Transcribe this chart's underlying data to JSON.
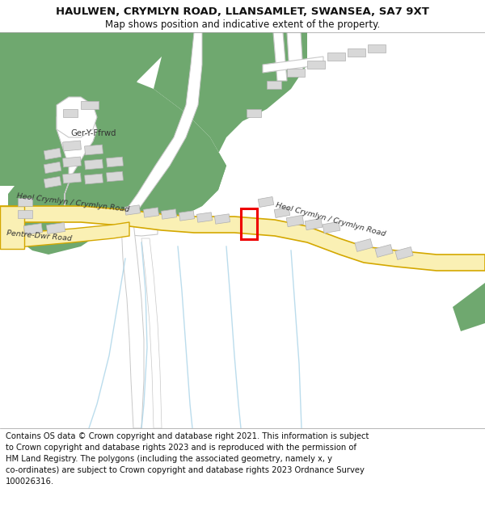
{
  "title": "HAULWEN, CRYMLYN ROAD, LLANSAMLET, SWANSEA, SA7 9XT",
  "subtitle": "Map shows position and indicative extent of the property.",
  "footer_lines": [
    "Contains OS data © Crown copyright and database right 2021. This information is subject",
    "to Crown copyright and database rights 2023 and is reproduced with the permission of",
    "HM Land Registry. The polygons (including the associated geometry, namely x, y",
    "co-ordinates) are subject to Crown copyright and database rights 2023 Ordnance Survey",
    "100026316."
  ],
  "bg_color": "#ffffff",
  "map_bg": "#f7f5f0",
  "road_major_fill": "#faf0b4",
  "road_major_edge": "#d4a800",
  "road_minor_fill": "#ffffff",
  "road_minor_edge": "#c8c8c8",
  "green_color": "#6fa86f",
  "building_fill": "#d8d8d8",
  "building_edge": "#b0b0b0",
  "water_color": "#aad4e8",
  "red_color": "#ee0000",
  "title_fontsize": 9.5,
  "subtitle_fontsize": 8.5,
  "footer_fontsize": 7.2,
  "label_fontsize": 6.8
}
